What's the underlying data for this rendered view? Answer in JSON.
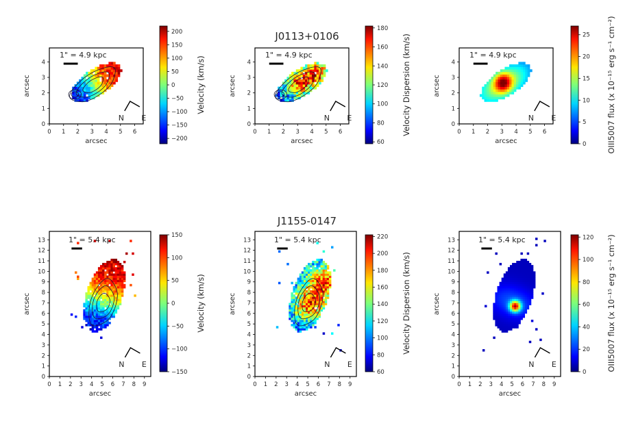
{
  "figure": {
    "rows": [
      {
        "title": "J0113+0106",
        "axis_ranges": {
          "x": [
            0,
            6.6
          ],
          "y": [
            0,
            4.9
          ]
        },
        "x_ticks": [
          0,
          1,
          2,
          3,
          4,
          5,
          6
        ],
        "y_ticks": [
          0,
          1,
          2,
          3,
          4
        ],
        "scale_bar": "1\" = 4.9 kpc",
        "compass": {
          "north": "N",
          "east": "E"
        }
      },
      {
        "title": "J1155-0147",
        "axis_ranges": {
          "x": [
            0,
            9.6
          ],
          "y": [
            0,
            13.8
          ]
        },
        "x_ticks": [
          0,
          1,
          2,
          3,
          4,
          5,
          6,
          7,
          8,
          9
        ],
        "y_ticks": [
          0,
          1,
          2,
          3,
          4,
          5,
          6,
          7,
          8,
          9,
          10,
          11,
          12,
          13
        ],
        "scale_bar": "1\" = 5.4 kpc",
        "compass": {
          "north": "N",
          "east": "E"
        }
      }
    ]
  },
  "chart_data": [
    {
      "type": "heatmap",
      "title": "J0113+0106",
      "panel": "velocity",
      "xlabel": "arcsec",
      "ylabel": "arcsec",
      "xlim": [
        0,
        6.6
      ],
      "ylim": [
        0,
        4.9
      ],
      "colorbar": {
        "label": "Velocity (km/s)",
        "range": [
          -220,
          220
        ],
        "ticks": [
          200,
          150,
          100,
          50,
          0,
          -50,
          -100,
          -150,
          -200
        ],
        "tick_labels": [
          "200",
          "150",
          "100",
          "50",
          "0",
          "−50",
          "−100",
          "−150",
          "−200"
        ]
      },
      "scale_bar": "1\" = 4.9 kpc",
      "compass": [
        "N",
        "E"
      ],
      "contours": true
    },
    {
      "type": "heatmap",
      "title": "J0113+0106",
      "panel": "velocity dispersion",
      "xlabel": "arcsec",
      "ylabel": "arcsec",
      "xlim": [
        0,
        6.6
      ],
      "ylim": [
        0,
        4.9
      ],
      "colorbar": {
        "label": "Velocity Dispersion (km/s)",
        "range": [
          58,
          182
        ],
        "ticks": [
          180,
          160,
          140,
          120,
          100,
          80,
          60
        ],
        "tick_labels": [
          "180",
          "160",
          "140",
          "120",
          "100",
          "80",
          "60"
        ]
      },
      "scale_bar": "1\" = 4.9 kpc",
      "compass": [
        "N",
        "E"
      ],
      "contours": true
    },
    {
      "type": "heatmap",
      "title": "J0113+0106",
      "panel": "flux",
      "xlabel": "arcsec",
      "ylabel": "arcsec",
      "xlim": [
        0,
        6.6
      ],
      "ylim": [
        0,
        4.9
      ],
      "colorbar": {
        "label": "OIII5007 flux (x 10⁻¹⁵ erg s⁻¹ cm⁻²)",
        "range": [
          0,
          27
        ],
        "ticks": [
          25,
          20,
          15,
          10,
          5,
          0
        ],
        "tick_labels": [
          "25",
          "20",
          "15",
          "10",
          "5",
          "0"
        ]
      },
      "scale_bar": "1\" = 4.9 kpc",
      "compass": [
        "N",
        "E"
      ],
      "contours": false
    },
    {
      "type": "heatmap",
      "title": "J1155-0147",
      "panel": "velocity",
      "xlabel": "arcsec",
      "ylabel": "arcsec",
      "xlim": [
        0,
        9.6
      ],
      "ylim": [
        0,
        13.8
      ],
      "colorbar": {
        "label": "Velocity (km/s)",
        "range": [
          -150,
          150
        ],
        "ticks": [
          150,
          100,
          50,
          0,
          -50,
          -100,
          -150
        ],
        "tick_labels": [
          "150",
          "100",
          "50",
          "0",
          "−50",
          "−100",
          "−150"
        ]
      },
      "scale_bar": "1\" = 5.4 kpc",
      "compass": [
        "N",
        "E"
      ],
      "contours": true
    },
    {
      "type": "heatmap",
      "title": "J1155-0147",
      "panel": "velocity dispersion",
      "xlabel": "arcsec",
      "ylabel": "arcsec",
      "xlim": [
        0,
        9.6
      ],
      "ylim": [
        0,
        13.8
      ],
      "colorbar": {
        "label": "Velocity Dispersion (km/s)",
        "range": [
          60,
          222
        ],
        "ticks": [
          220,
          200,
          180,
          160,
          140,
          120,
          100,
          80,
          60
        ],
        "tick_labels": [
          "220",
          "200",
          "180",
          "160",
          "140",
          "120",
          "100",
          "80",
          "60"
        ]
      },
      "scale_bar": "1\" = 5.4 kpc",
      "compass": [
        "N",
        "E"
      ],
      "contours": true
    },
    {
      "type": "heatmap",
      "title": "J1155-0147",
      "panel": "flux",
      "xlabel": "arcsec",
      "ylabel": "arcsec",
      "xlim": [
        0,
        9.6
      ],
      "ylim": [
        0,
        13.8
      ],
      "colorbar": {
        "label": "OIII5007 flux (x 10⁻¹⁵ erg s⁻¹ cm⁻²)",
        "range": [
          0,
          122
        ],
        "ticks": [
          120,
          100,
          80,
          60,
          40,
          20,
          0
        ],
        "tick_labels": [
          "120",
          "100",
          "80",
          "60",
          "40",
          "20",
          "0"
        ]
      },
      "scale_bar": "1\" = 5.4 kpc",
      "compass": [
        "N",
        "E"
      ],
      "contours": false
    }
  ]
}
